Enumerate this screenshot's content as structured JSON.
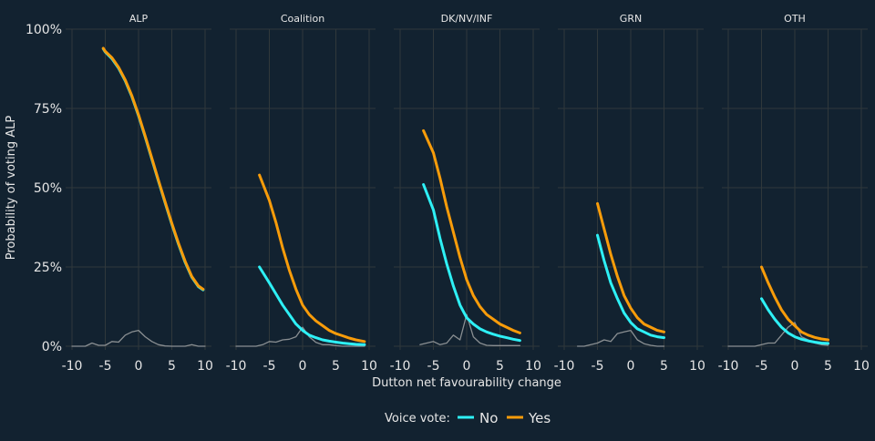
{
  "colors": {
    "background": "#122230",
    "grid": "#30383b",
    "No": "#2ef0f5",
    "Yes": "#f89c0a",
    "distribution": "#8a8f92",
    "text": "#e6e6e6"
  },
  "chart_data": {
    "type": "line",
    "ylabel": "Probability of voting ALP",
    "xlabel": "Dutton net favourability change",
    "ylim": [
      0,
      100
    ],
    "xlim": [
      -10,
      10
    ],
    "yticks": [
      "0%",
      "25%",
      "50%",
      "75%",
      "100%"
    ],
    "ytick_values": [
      0,
      25,
      50,
      75,
      100
    ],
    "xticks": [
      "-10",
      "-5",
      "0",
      "5",
      "10"
    ],
    "xtick_values": [
      -10,
      -5,
      0,
      5,
      10
    ],
    "grid": true,
    "legend": {
      "title": "Voice vote:",
      "entries": [
        "No",
        "Yes"
      ],
      "placement": "bottom"
    },
    "panels": [
      {
        "title": "ALP",
        "series": [
          {
            "name": "No",
            "x": [
              -5.3,
              -5,
              -4,
              -3,
              -2,
              -1,
              0,
              1,
              2,
              3,
              4,
              5,
              6,
              7,
              8,
              9,
              9.7
            ],
            "y": [
              93.8,
              92.8,
              90.7,
              87.7,
              83.7,
              78.7,
              72.7,
              66,
              59,
              52,
              45.2,
              38.5,
              32.2,
              26.5,
              21.8,
              18.8,
              17.8
            ]
          },
          {
            "name": "Yes",
            "x": [
              -5.3,
              -5,
              -4,
              -3,
              -2,
              -1,
              0,
              1,
              2,
              3,
              4,
              5,
              6,
              7,
              8,
              9,
              9.7
            ],
            "y": [
              94,
              93,
              91,
              88,
              84,
              79,
              73,
              66.3,
              59.3,
              52.3,
              45.5,
              38.8,
              32.5,
              26.8,
              22,
              19,
              18
            ]
          },
          {
            "name": "distribution",
            "x": [
              -10,
              -9,
              -8,
              -7,
              -6,
              -5,
              -4,
              -3,
              -2,
              -1,
              0,
              1,
              2,
              3,
              4,
              5,
              6,
              7,
              8,
              9,
              10
            ],
            "y": [
              0,
              0,
              0,
              1,
              0.3,
              0.3,
              1.5,
              1.3,
              3.5,
              4.5,
              5,
              3,
              1.5,
              0.5,
              0.1,
              0,
              0,
              0,
              0.5,
              0,
              0
            ]
          }
        ]
      },
      {
        "title": "Coalition",
        "series": [
          {
            "name": "No",
            "x": [
              -6.5,
              -5,
              -4,
              -3,
              -2,
              -1,
              0,
              1,
              2,
              3,
              4,
              5,
              6,
              7,
              8,
              9.3
            ],
            "y": [
              25,
              20,
              16.5,
              13,
              10,
              7,
              5,
              3.5,
              2.7,
              2,
              1.6,
              1.3,
              1,
              0.8,
              0.6,
              0.5
            ]
          },
          {
            "name": "Yes",
            "x": [
              -6.5,
              -5,
              -4,
              -3,
              -2,
              -1,
              0,
              1,
              2,
              3,
              4,
              5,
              6,
              7,
              8,
              9.3
            ],
            "y": [
              54,
              46,
              39,
              31,
              24,
              18,
              13,
              10,
              8,
              6.5,
              5,
              4,
              3.3,
              2.6,
              2,
              1.5
            ]
          },
          {
            "name": "distribution",
            "x": [
              -10,
              -9,
              -8,
              -7,
              -6,
              -5,
              -4,
              -3,
              -2,
              -1,
              0,
              1,
              2,
              3,
              4,
              5,
              6,
              7,
              8,
              9,
              9.3
            ],
            "y": [
              0,
              0,
              0,
              0,
              0.5,
              1.5,
              1.3,
              2,
              2.2,
              3,
              6,
              3,
              1.2,
              0.5,
              0.5,
              0.2,
              0,
              0,
              0,
              0,
              0
            ]
          }
        ]
      },
      {
        "title": "DK/NV/INF",
        "series": [
          {
            "name": "No",
            "x": [
              -6.5,
              -5,
              -4,
              -3,
              -2,
              -1,
              0,
              1,
              2,
              3,
              4,
              5,
              6,
              7,
              8
            ],
            "y": [
              51,
              43,
              34,
              26,
              19,
              13,
              9,
              7,
              5.5,
              4.5,
              3.8,
              3.2,
              2.7,
              2.2,
              1.8
            ]
          },
          {
            "name": "Yes",
            "x": [
              -6.5,
              -5,
              -4,
              -3,
              -2,
              -1,
              0,
              1,
              2,
              3,
              4,
              5,
              6,
              7,
              8
            ],
            "y": [
              68,
              61,
              53,
              44,
              36,
              28,
              21,
              16,
              12.5,
              10,
              8.5,
              7,
              6,
              5,
              4.2
            ]
          },
          {
            "name": "distribution",
            "x": [
              -7,
              -6,
              -5,
              -4,
              -3,
              -2,
              -1,
              0,
              1,
              2,
              3,
              4,
              5,
              6,
              7,
              8
            ],
            "y": [
              0.5,
              1,
              1.5,
              0.5,
              1,
              3.5,
              2,
              10,
              3,
              1,
              0.3,
              0.2,
              0.2,
              0.2,
              0.2,
              0.2
            ]
          }
        ]
      },
      {
        "title": "GRN",
        "series": [
          {
            "name": "No",
            "x": [
              -5,
              -4,
              -3,
              -2,
              -1,
              0,
              1,
              2,
              3,
              4,
              5
            ],
            "y": [
              35,
              27,
              20,
              15,
              10.5,
              7.5,
              5.5,
              4.5,
              3.5,
              3,
              2.7
            ]
          },
          {
            "name": "Yes",
            "x": [
              -5,
              -4,
              -3,
              -2,
              -1,
              0,
              1,
              2,
              3,
              4,
              5
            ],
            "y": [
              45,
              37,
              29,
              22,
              16,
              12,
              9,
              7,
              6,
              5,
              4.5
            ]
          },
          {
            "name": "distribution",
            "x": [
              -8,
              -7,
              -6,
              -5,
              -4,
              -3,
              -2,
              -1,
              0,
              1,
              2,
              3,
              4,
              5
            ],
            "y": [
              0,
              0,
              0.5,
              1,
              2,
              1.5,
              4,
              4.5,
              5,
              2,
              0.8,
              0.3,
              0,
              0
            ]
          }
        ]
      },
      {
        "title": "OTH",
        "series": [
          {
            "name": "No",
            "x": [
              -5,
              -4,
              -3,
              -2,
              -1,
              0,
              1,
              2,
              3,
              4,
              5
            ],
            "y": [
              15,
              11.5,
              8.5,
              6,
              4.2,
              3,
              2.2,
              1.7,
              1.3,
              1,
              0.9
            ]
          },
          {
            "name": "Yes",
            "x": [
              -5,
              -4,
              -3,
              -2,
              -1,
              0,
              1,
              2,
              3,
              4,
              5
            ],
            "y": [
              25,
              20,
              15.5,
              11.5,
              8.5,
              6.5,
              4.5,
              3.5,
              2.8,
              2.3,
              2
            ]
          },
          {
            "name": "distribution",
            "x": [
              -10,
              -9,
              -8,
              -7,
              -6,
              -5,
              -4,
              -3,
              -2,
              -1,
              0,
              1,
              2,
              3,
              4,
              5
            ],
            "y": [
              0,
              0,
              0,
              0,
              0,
              0.5,
              1,
              1,
              3.5,
              6,
              7.5,
              3,
              2,
              1,
              0.5,
              0.3
            ]
          }
        ]
      }
    ]
  }
}
